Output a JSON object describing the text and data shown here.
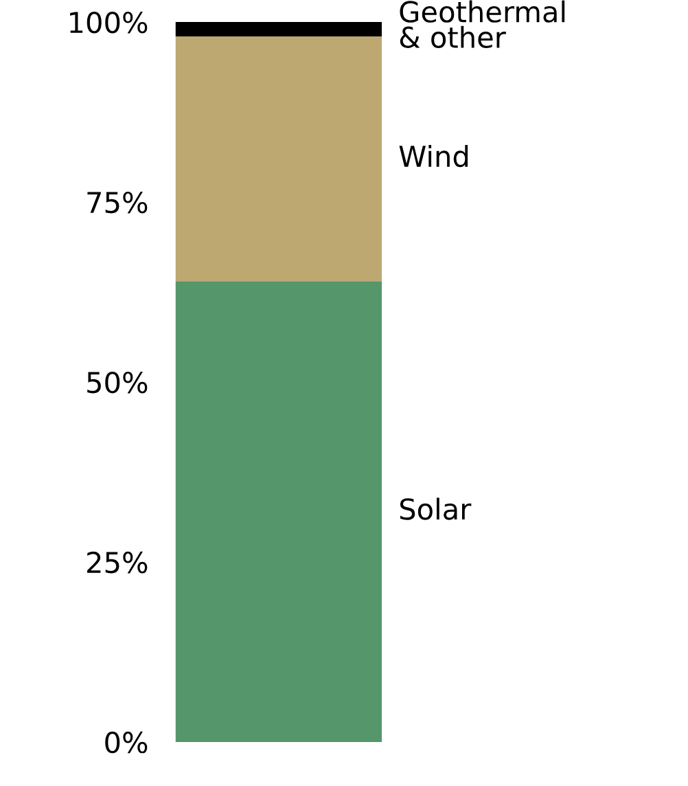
{
  "chart_data": {
    "type": "bar",
    "stacked": true,
    "categories": [
      null
    ],
    "series": [
      {
        "name": "Solar",
        "color": "#55966b",
        "values": [
          64
        ]
      },
      {
        "name": "Wind",
        "color": "#bda872",
        "values": [
          34
        ]
      },
      {
        "name": "Geothermal\n& other",
        "color": "#000000",
        "values": [
          2
        ]
      }
    ],
    "ylim": [
      0,
      100
    ],
    "yticks": [
      {
        "value": 0,
        "label": "0%"
      },
      {
        "value": 25,
        "label": "25%"
      },
      {
        "value": 50,
        "label": "50%"
      },
      {
        "value": 75,
        "label": "75%"
      },
      {
        "value": 100,
        "label": "100%"
      }
    ],
    "grid": false,
    "legend": false
  }
}
